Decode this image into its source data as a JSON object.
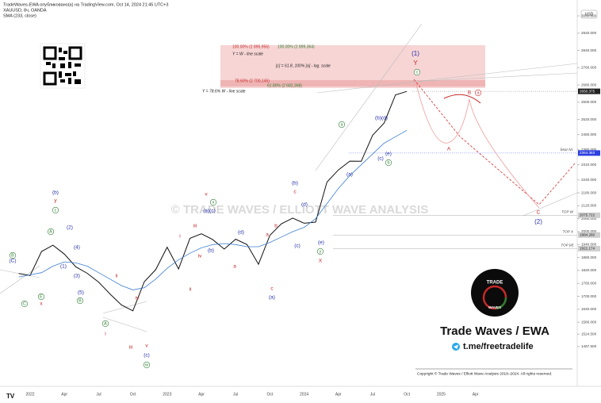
{
  "chart_data": {
    "type": "line",
    "header": "TradeWaves-EWA опубликовано(а) на TradingView.com, Oct 14, 2024 21:45 UTC+3",
    "currency": "USD",
    "categories": [
      null,
      "2022",
      null,
      null,
      "Apr",
      null,
      null,
      "Jul",
      null,
      null,
      "Oct",
      null,
      null,
      "2023",
      null,
      null,
      "Apr",
      null,
      null,
      "Jul",
      null,
      null,
      "Oct",
      null,
      null,
      "2024",
      null,
      null,
      "Apr",
      null,
      null,
      "Jul",
      null,
      null,
      "Oct",
      null,
      null,
      "2025",
      null,
      null,
      "Apr"
    ],
    "series": [
      {
        "name": "XAUUSD, 8ч, OANDA",
        "color": "#111111",
        "values": [
          1806,
          1797,
          1908,
          1937,
          1896,
          1837,
          1807,
          1766,
          1711,
          1660,
          1633,
          1768,
          1824,
          1928,
          1827,
          1969,
          1990,
          1963,
          1919,
          1965,
          1940,
          1849,
          1983,
          2036,
          2063,
          2039,
          2044,
          2230,
          2286,
          2327,
          2326,
          2447,
          2503,
          2634,
          2650,
          null,
          null,
          null,
          null,
          null,
          null
        ]
      },
      {
        "name": "SMA (233, close)",
        "color": "#3d7fd1",
        "values": [
          1790,
          1800,
          1810,
          1840,
          1860,
          1855,
          1840,
          1810,
          1780,
          1750,
          1730,
          1740,
          1780,
          1830,
          1870,
          1900,
          1925,
          1940,
          1945,
          1940,
          1930,
          1930,
          1950,
          1975,
          2000,
          2020,
          2060,
          2130,
          2200,
          2260,
          2310,
          2360,
          2410,
          2440,
          2470,
          null,
          null,
          null,
          null,
          null,
          null
        ]
      }
    ],
    "ylim": [
      1294,
      3059
    ],
    "yticks": [
      {
        "value": 3000,
        "label": "3000.000"
      },
      {
        "value": 2920,
        "label": "2920.000"
      },
      {
        "value": 2840,
        "label": "2840.000"
      },
      {
        "value": 2760,
        "label": "2760.000"
      },
      {
        "value": 2680,
        "label": "2680.000"
      },
      {
        "value": 2600,
        "label": "2600.000"
      },
      {
        "value": 2520,
        "label": "2520.000"
      },
      {
        "value": 2450,
        "label": "2450.000"
      },
      {
        "value": 2380,
        "label": "2380.000"
      },
      {
        "value": 2310,
        "label": "2310.000"
      },
      {
        "value": 2240,
        "label": "2240.000"
      },
      {
        "value": 2180,
        "label": "2180.000"
      },
      {
        "value": 2120,
        "label": "2120.000"
      },
      {
        "value": 2060,
        "label": "2060.000"
      },
      {
        "value": 2000,
        "label": "2000.000"
      },
      {
        "value": 1940,
        "label": "1940.000"
      },
      {
        "value": 1880,
        "label": "1880.000"
      },
      {
        "value": 1820,
        "label": "1820.000"
      },
      {
        "value": 1760,
        "label": "1760.000"
      },
      {
        "value": 1700,
        "label": "1700.000"
      },
      {
        "value": 1640,
        "label": "1640.000"
      },
      {
        "value": 1580,
        "label": "1580.000"
      },
      {
        "value": 1524.5,
        "label": "1524.500"
      },
      {
        "value": 1467.5,
        "label": "1467.500"
      }
    ],
    "last_price": 2650.375,
    "levels": [
      {
        "name": "bear lvl.",
        "price": 2364.383
      },
      {
        "name": "TOP W",
        "price": 2075.722
      },
      {
        "name": "TOP X",
        "price": {
          "value": 1984.28,
          "label": "1984.280"
        }
      },
      {
        "name": "TOP [4]",
        "price": 1921.174
      }
    ],
    "fib_notes": [
      "100.00% (2 895,956)",
      "Y = W - line scale",
      "100.00% (2 899,364)",
      "[c] = 61.8, 100% [a] - log. scale",
      "78.60% (2 700,145)",
      "61.80% (2 682,368)",
      "Y = 78.6% W - line scale"
    ],
    "wave_labels": [
      "(b)",
      "y",
      "c",
      "(2)",
      "A",
      "(4)",
      "(1)",
      "(3)",
      "(5)",
      "B",
      "A",
      "i",
      "ii",
      "iii",
      "iv",
      "v",
      "(c)",
      "w",
      "B",
      "(C)",
      "C",
      "x",
      "E",
      "i",
      "ii",
      "iii",
      "iv",
      "v",
      "(a)(c)",
      "x",
      "(b)",
      "a",
      "(d)",
      "b",
      "a",
      "c",
      "(a)",
      "(b)",
      "c",
      "(d)",
      "(c)",
      "(e)",
      "y",
      "X",
      "(a)",
      "a",
      "(b)(d)",
      "(e)",
      "(c)",
      "b",
      "(1)",
      "Y",
      "c",
      "B",
      "a",
      "A",
      "C",
      "(2)"
    ],
    "watermark": "© TRADE WAVES / ELLIOTT WAVE ANALYSIS",
    "logo_top": "TRADE",
    "logo_bottom": "WAVES",
    "brand": "Trade Waves / EWA",
    "telegram": "t.me/freetradelife",
    "copyright": "Copyright © Trade Waves / Elliott Wave Analysis 2018–2024. All rights reserved."
  }
}
